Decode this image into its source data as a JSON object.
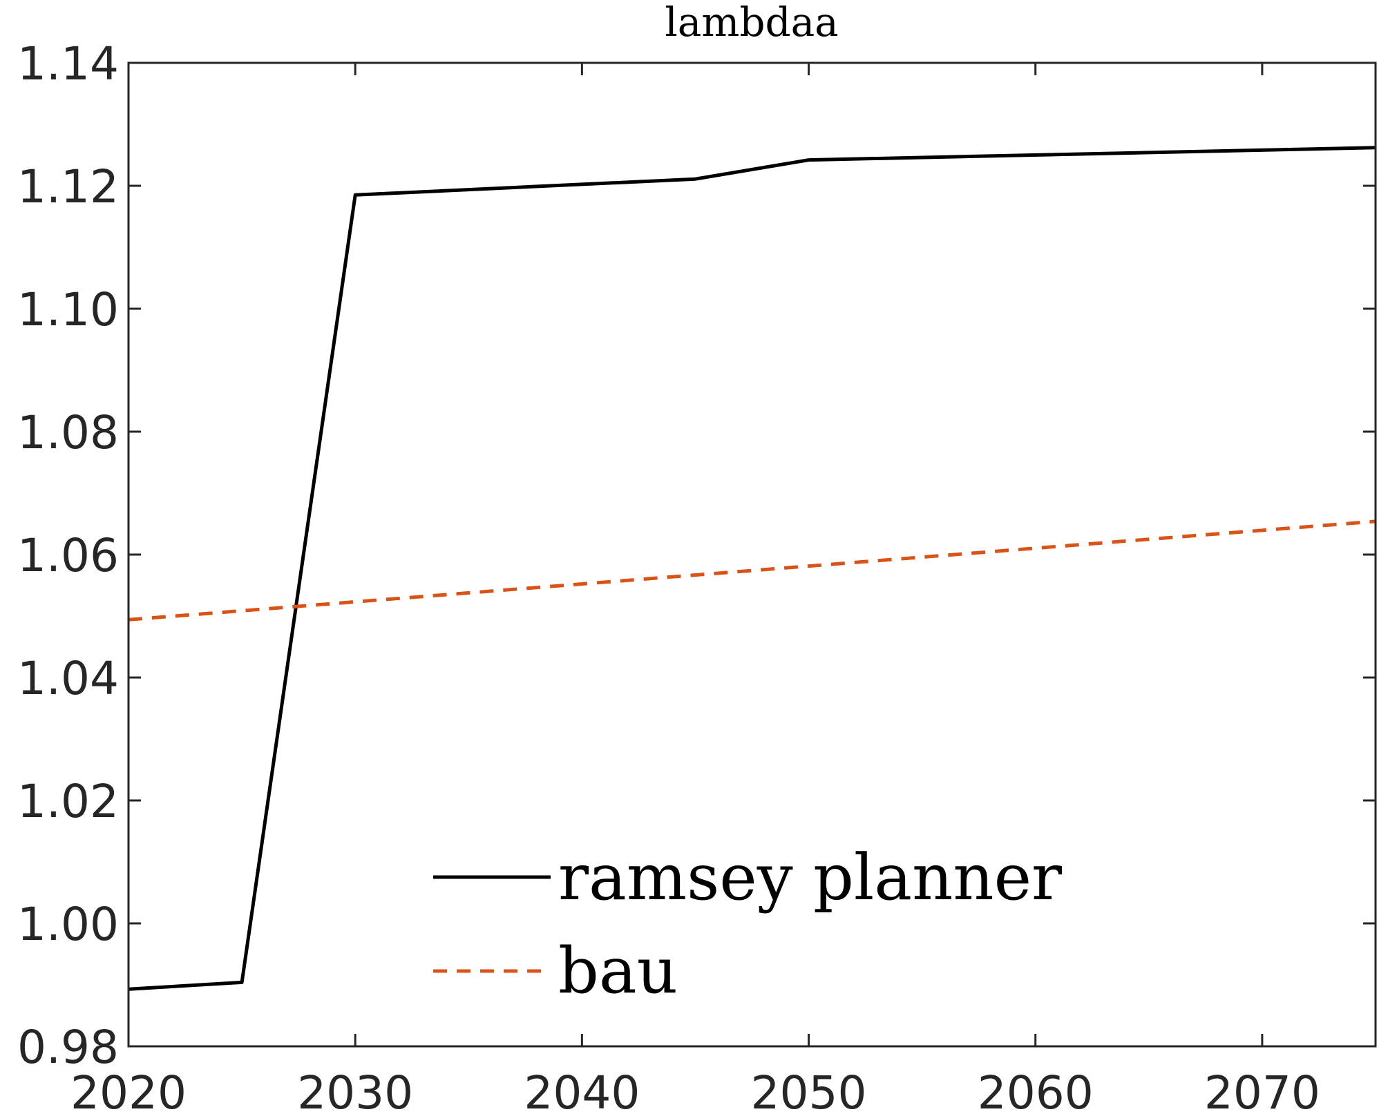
{
  "chart_data": {
    "type": "line",
    "title": "lambdaa",
    "xlabel": "",
    "ylabel": "",
    "xlim": [
      2020,
      2075
    ],
    "ylim": [
      0.98,
      1.14
    ],
    "x_ticks": [
      "2020",
      "2030",
      "2040",
      "2050",
      "2060",
      "2070"
    ],
    "y_ticks": [
      "0.98",
      "1.00",
      "1.02",
      "1.04",
      "1.06",
      "1.08",
      "1.10",
      "1.12",
      "1.14"
    ],
    "grid": false,
    "legend_position": "bottom-center",
    "series": [
      {
        "name": "ramsey planner",
        "color": "#000000",
        "style": "solid",
        "x": [
          2020,
          2025,
          2030,
          2045,
          2050,
          2075
        ],
        "y": [
          0.9893,
          0.9904,
          1.1185,
          1.1211,
          1.1242,
          1.1262
        ]
      },
      {
        "name": "bau",
        "color": "#D95319",
        "style": "dashed",
        "x": [
          2020,
          2075
        ],
        "y": [
          1.0494,
          1.0654
        ]
      }
    ]
  }
}
